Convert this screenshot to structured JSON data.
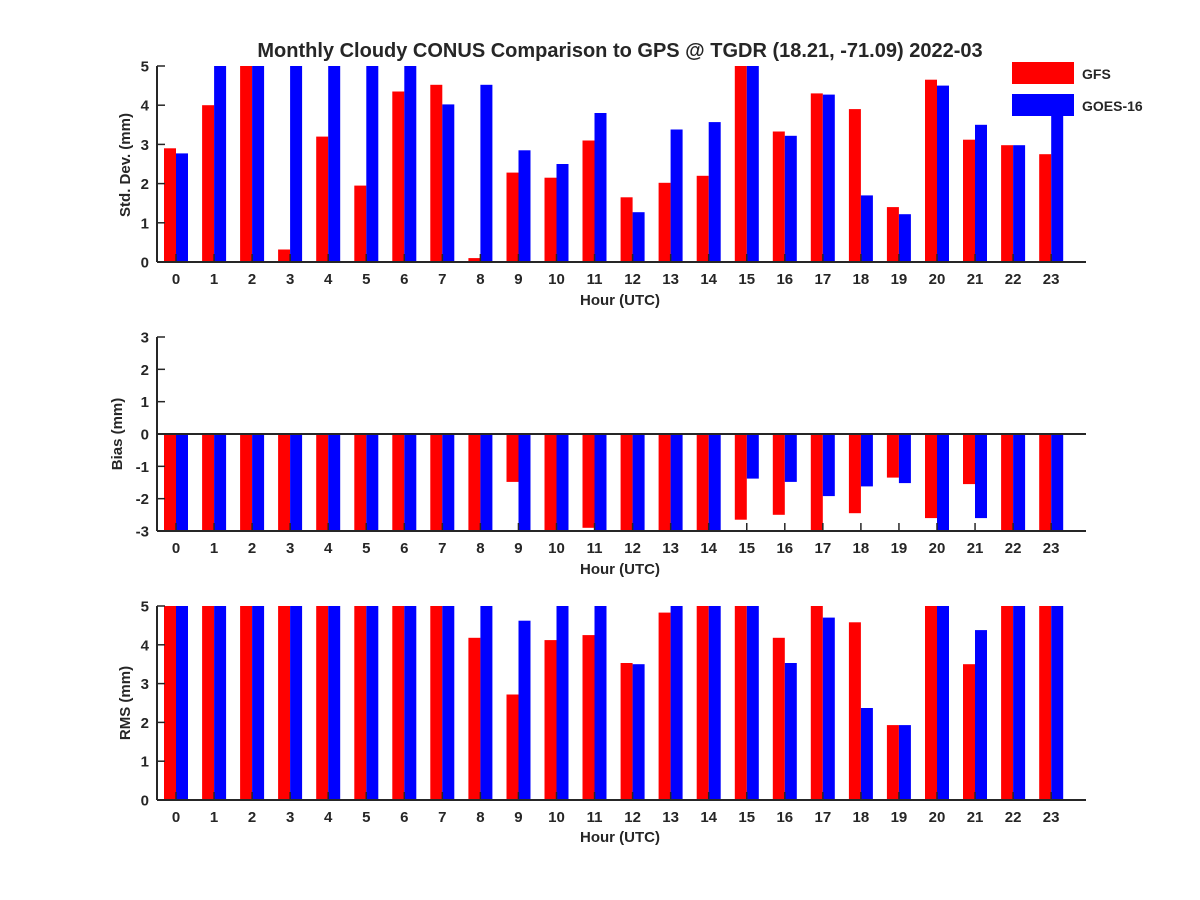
{
  "figure": {
    "title": "Monthly Cloudy CONUS Comparison to GPS @ TGDR (18.21, -71.09) 2022-03"
  },
  "legend": {
    "placement": "top-right",
    "entries": [
      {
        "label": "GFS",
        "color": "#ff0000"
      },
      {
        "label": "GOES-16",
        "color": "#0000ff"
      }
    ]
  },
  "chart_data": [
    {
      "type": "bar",
      "xlabel": "Hour (UTC)",
      "ylabel": "Std. Dev. (mm)",
      "ylim": [
        0,
        5
      ],
      "yticks": [
        0,
        1,
        2,
        3,
        4,
        5
      ],
      "categories": [
        "0",
        "1",
        "2",
        "3",
        "4",
        "5",
        "6",
        "7",
        "8",
        "9",
        "10",
        "11",
        "12",
        "13",
        "14",
        "15",
        "16",
        "17",
        "18",
        "19",
        "20",
        "21",
        "22",
        "23"
      ],
      "series": [
        {
          "name": "GFS",
          "color": "#ff0000",
          "values": [
            2.9,
            4.0,
            5.0,
            0.32,
            3.2,
            1.95,
            4.35,
            4.52,
            0.1,
            2.28,
            2.15,
            3.1,
            1.65,
            2.02,
            2.2,
            5.0,
            3.33,
            4.3,
            3.9,
            1.4,
            4.65,
            3.12,
            2.98,
            2.75
          ]
        },
        {
          "name": "GOES-16",
          "color": "#0000ff",
          "values": [
            2.77,
            5.0,
            5.0,
            5.0,
            5.0,
            5.0,
            5.0,
            4.02,
            4.52,
            2.85,
            2.5,
            3.8,
            1.27,
            3.38,
            3.57,
            5.0,
            3.22,
            4.27,
            1.7,
            1.22,
            4.5,
            3.5,
            2.98,
            3.8
          ]
        }
      ]
    },
    {
      "type": "bar",
      "xlabel": "Hour (UTC)",
      "ylabel": "Bias (mm)",
      "ylim": [
        -3,
        3
      ],
      "yticks": [
        -3,
        -2,
        -1,
        0,
        1,
        2,
        3
      ],
      "categories": [
        "0",
        "1",
        "2",
        "3",
        "4",
        "5",
        "6",
        "7",
        "8",
        "9",
        "10",
        "11",
        "12",
        "13",
        "14",
        "15",
        "16",
        "17",
        "18",
        "19",
        "20",
        "21",
        "22",
        "23"
      ],
      "series": [
        {
          "name": "GFS",
          "color": "#ff0000",
          "values": [
            -3.0,
            -3.0,
            -3.0,
            -3.0,
            -3.0,
            -3.0,
            -3.0,
            -3.0,
            -3.0,
            -1.48,
            -3.0,
            -2.9,
            -3.0,
            -3.0,
            -3.0,
            -2.65,
            -2.5,
            -3.0,
            -2.45,
            -1.35,
            -2.6,
            -1.55,
            -3.0,
            -3.0
          ]
        },
        {
          "name": "GOES-16",
          "color": "#0000ff",
          "values": [
            -3.0,
            -3.0,
            -3.0,
            -3.0,
            -3.0,
            -3.0,
            -3.0,
            -3.0,
            -3.0,
            -3.0,
            -3.0,
            -3.0,
            -3.0,
            -3.0,
            -3.0,
            -1.38,
            -1.48,
            -1.92,
            -1.62,
            -1.52,
            -3.0,
            -2.6,
            -3.0,
            -3.0
          ]
        }
      ]
    },
    {
      "type": "bar",
      "xlabel": "Hour (UTC)",
      "ylabel": "RMS (mm)",
      "ylim": [
        0,
        5
      ],
      "yticks": [
        0,
        1,
        2,
        3,
        4,
        5
      ],
      "categories": [
        "0",
        "1",
        "2",
        "3",
        "4",
        "5",
        "6",
        "7",
        "8",
        "9",
        "10",
        "11",
        "12",
        "13",
        "14",
        "15",
        "16",
        "17",
        "18",
        "19",
        "20",
        "21",
        "22",
        "23"
      ],
      "series": [
        {
          "name": "GFS",
          "color": "#ff0000",
          "values": [
            5.0,
            5.0,
            5.0,
            5.0,
            5.0,
            5.0,
            5.0,
            5.0,
            4.18,
            2.72,
            4.12,
            4.25,
            3.53,
            4.83,
            5.0,
            5.0,
            4.18,
            5.0,
            4.58,
            1.93,
            5.0,
            3.5,
            5.0,
            5.0
          ]
        },
        {
          "name": "GOES-16",
          "color": "#0000ff",
          "values": [
            5.0,
            5.0,
            5.0,
            5.0,
            5.0,
            5.0,
            5.0,
            5.0,
            5.0,
            4.62,
            5.0,
            5.0,
            3.5,
            5.0,
            5.0,
            5.0,
            3.53,
            4.7,
            2.37,
            1.93,
            5.0,
            4.38,
            5.0,
            5.0
          ]
        }
      ]
    }
  ]
}
